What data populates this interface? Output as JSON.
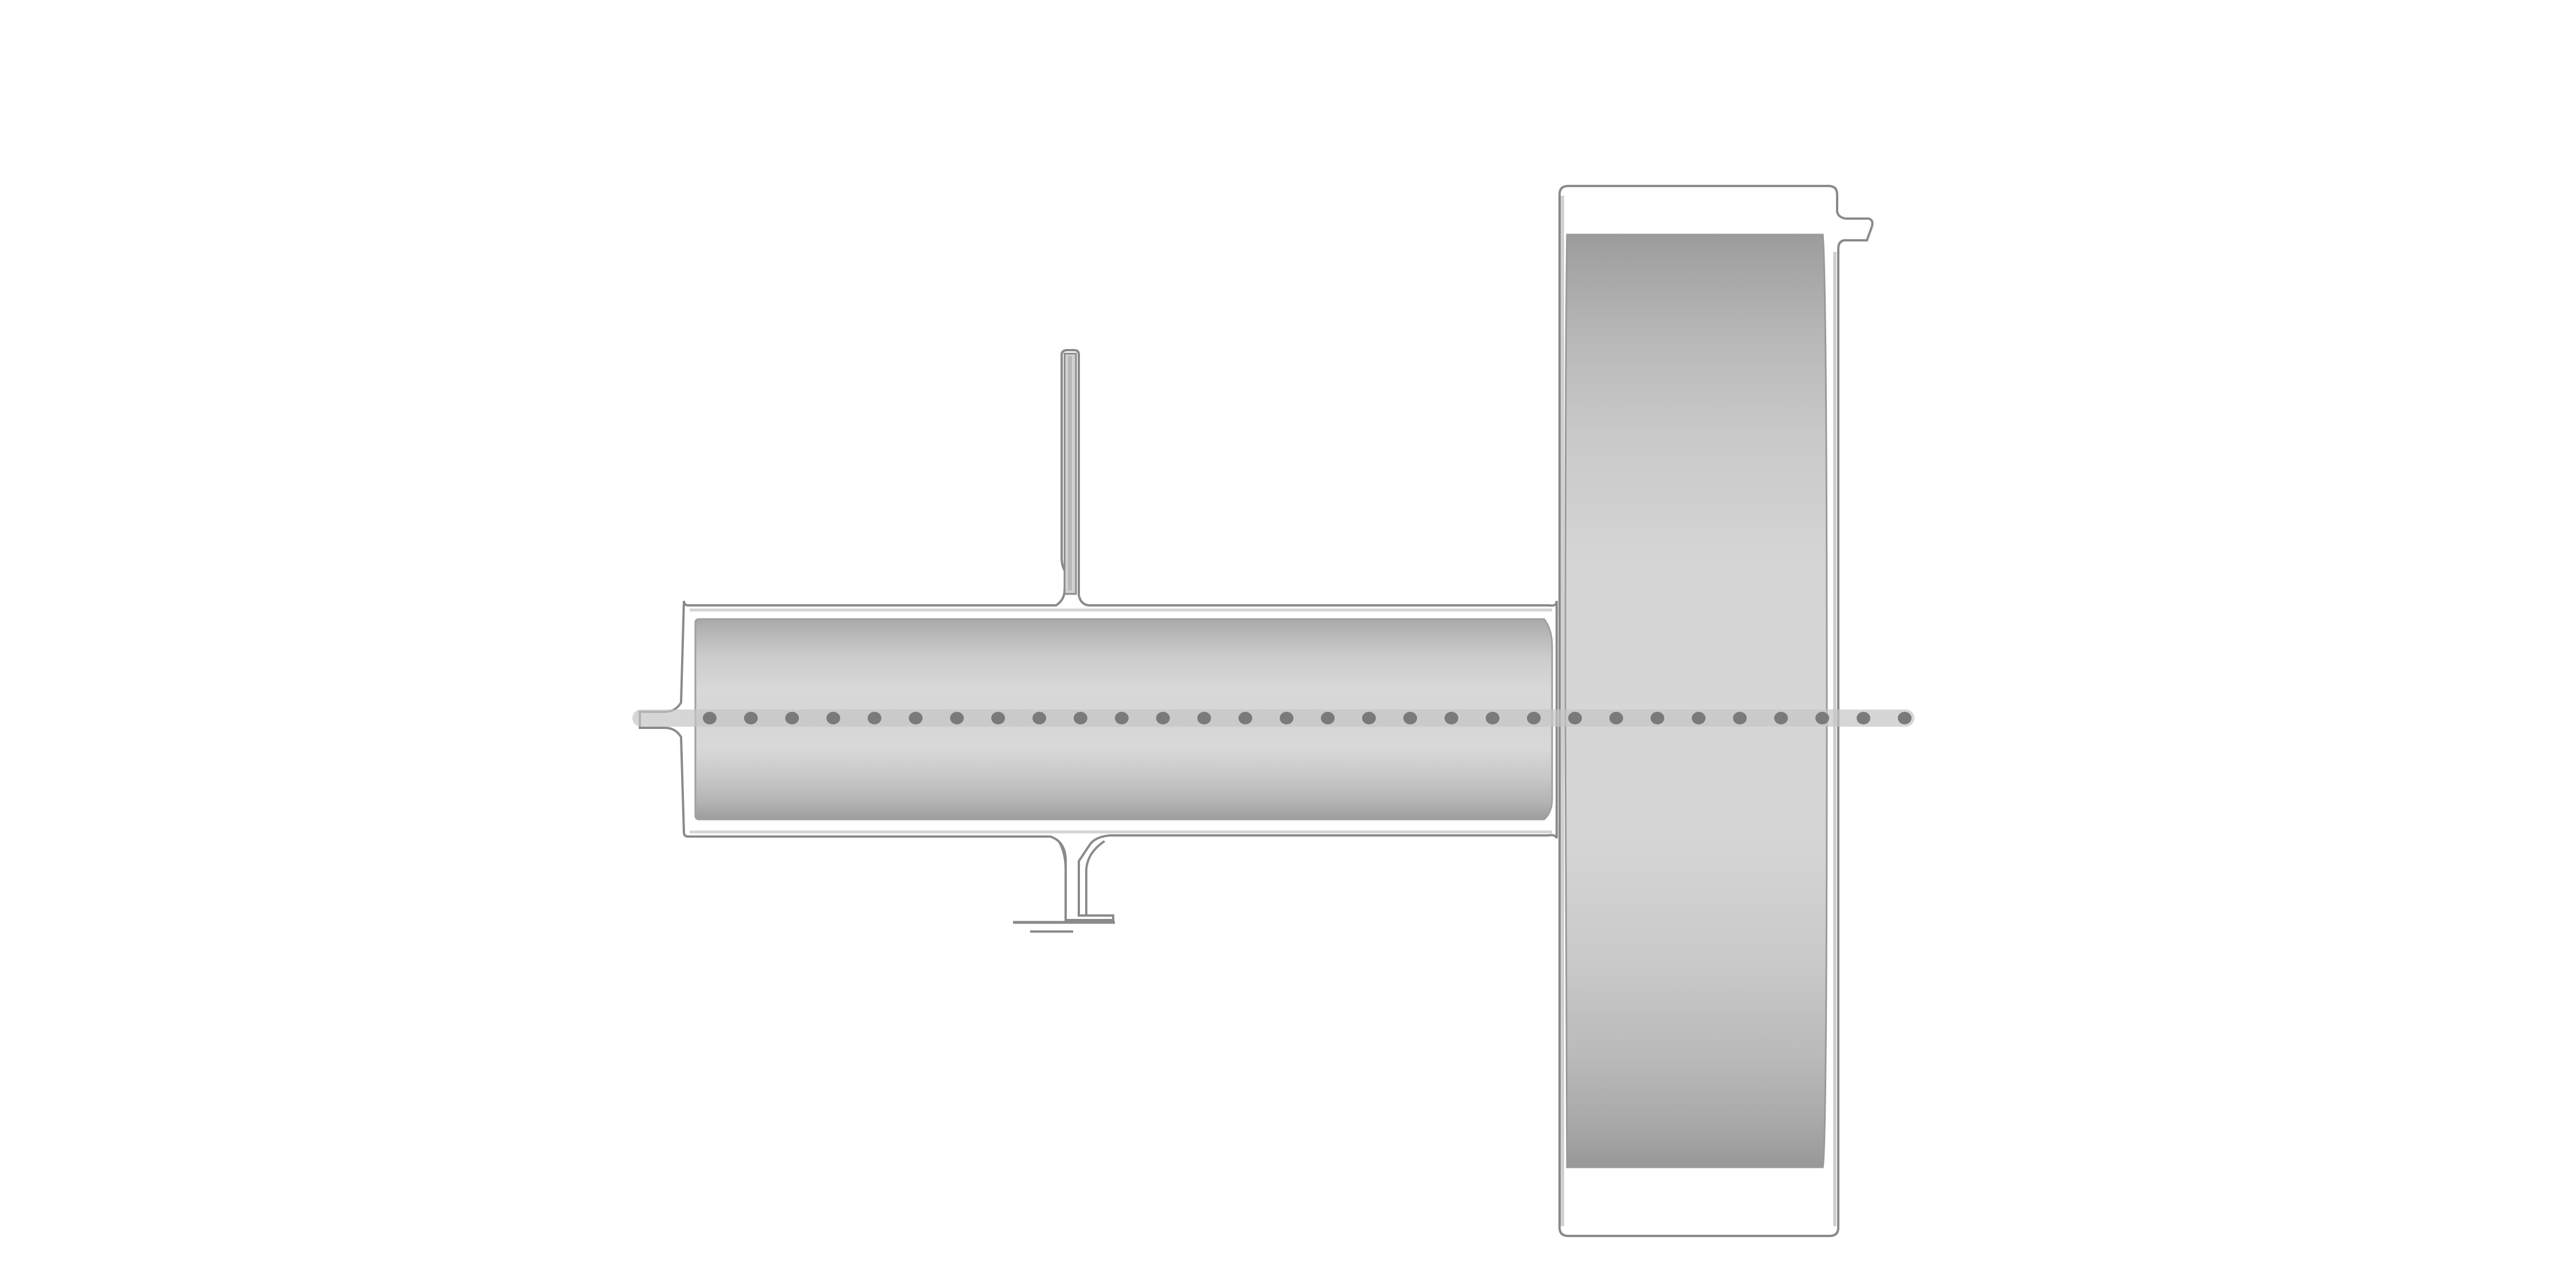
{
  "diagram": {
    "type": "technical-cross-section",
    "colors": {
      "background": "#ffffff",
      "outline": "#8a8a8a",
      "outline_light": "#c8c8c8",
      "housing_fill": "#ffffff",
      "barrel_light": "#d6d6d6",
      "barrel_mid": "#bdbdbd",
      "barrel_dark": "#9a9a9a",
      "centerline_dots": "#7a7a7a",
      "centerline_band": "#c4c4c4"
    },
    "components": [
      {
        "id": "main-housing",
        "label": ""
      },
      {
        "id": "top-vertical-port",
        "label": ""
      },
      {
        "id": "bottom-port-fitting",
        "label": ""
      },
      {
        "id": "horizontal-barrel",
        "label": ""
      },
      {
        "id": "large-end-disc",
        "label": ""
      },
      {
        "id": "end-flange-housing",
        "label": ""
      },
      {
        "id": "centerline-axis",
        "label": ""
      }
    ]
  }
}
